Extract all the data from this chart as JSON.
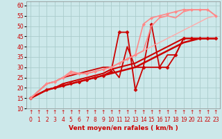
{
  "title": "",
  "xlabel": "Vent moyen/en rafales ( km/h )",
  "bg_color": "#cce8ea",
  "grid_color": "#aacccc",
  "xlim": [
    -0.5,
    23.5
  ],
  "ylim": [
    10,
    62
  ],
  "yticks": [
    10,
    15,
    20,
    25,
    30,
    35,
    40,
    45,
    50,
    55,
    60
  ],
  "ytick_labels": [
    "10",
    "15",
    "20",
    "25",
    "30",
    "35",
    "40",
    "45",
    "50",
    "55",
    "60"
  ],
  "xticks": [
    0,
    1,
    2,
    3,
    4,
    5,
    6,
    7,
    8,
    9,
    10,
    11,
    12,
    13,
    14,
    15,
    16,
    17,
    18,
    19,
    20,
    21,
    22,
    23
  ],
  "lines": [
    {
      "x": [
        0,
        2,
        3,
        4,
        5,
        6,
        7,
        8,
        9,
        10,
        11,
        12,
        13,
        14,
        15,
        16,
        17,
        18,
        19,
        20,
        21,
        22,
        23
      ],
      "y": [
        15,
        19,
        20,
        21,
        22,
        23,
        24,
        25,
        26,
        27,
        28,
        29,
        30,
        32,
        34,
        36,
        38,
        40,
        42,
        43,
        44,
        44,
        44
      ],
      "color": "#cc0000",
      "lw": 1.8,
      "marker": null,
      "ms": 0
    },
    {
      "x": [
        0,
        2,
        3,
        4,
        5,
        6,
        7,
        8,
        9,
        10,
        11,
        12,
        13,
        14,
        15,
        16,
        17,
        18,
        19,
        20,
        21,
        22,
        23
      ],
      "y": [
        15,
        19,
        20,
        22,
        23,
        24,
        25,
        26,
        27,
        29,
        30,
        31,
        32,
        34,
        36,
        38,
        40,
        42,
        44,
        44,
        44,
        44,
        44
      ],
      "color": "#cc0000",
      "lw": 1.5,
      "marker": null,
      "ms": 0
    },
    {
      "x": [
        0,
        2,
        3,
        4,
        5,
        6,
        7,
        8,
        9,
        10,
        11,
        12,
        13,
        14,
        15,
        16,
        17,
        18,
        19,
        20,
        21,
        22,
        23
      ],
      "y": [
        15,
        22,
        23,
        25,
        26,
        27,
        28,
        29,
        30,
        30,
        25,
        40,
        30,
        30,
        30,
        30,
        36,
        36,
        44,
        44,
        44,
        44,
        44
      ],
      "color": "#cc0000",
      "lw": 1.3,
      "marker": null,
      "ms": 0
    },
    {
      "x": [
        0,
        2,
        3,
        4,
        5,
        6,
        7,
        8,
        9,
        10,
        11,
        12,
        13,
        14,
        15,
        16,
        17,
        18,
        19,
        20,
        21,
        22,
        23
      ],
      "y": [
        15,
        19,
        20,
        21,
        22,
        23,
        24,
        25,
        26,
        28,
        47,
        47,
        19,
        30,
        51,
        30,
        30,
        36,
        44,
        44,
        44,
        44,
        44
      ],
      "color": "#cc0000",
      "lw": 1.3,
      "marker": "D",
      "ms": 2.5
    },
    {
      "x": [
        0,
        2,
        3,
        4,
        5,
        6,
        7,
        8,
        9,
        10,
        11,
        12,
        13,
        14,
        15,
        16,
        17,
        18,
        19,
        20,
        21,
        22,
        23
      ],
      "y": [
        15,
        22,
        23,
        25,
        27,
        27,
        27,
        28,
        29,
        30,
        32,
        34,
        36,
        38,
        40,
        42,
        44,
        46,
        48,
        50,
        52,
        54,
        55
      ],
      "color": "#ffaaaa",
      "lw": 1.0,
      "marker": null,
      "ms": 0
    },
    {
      "x": [
        0,
        2,
        3,
        4,
        5,
        6,
        7,
        8,
        9,
        10,
        11,
        12,
        13,
        14,
        15,
        16,
        17,
        18,
        19,
        20,
        21,
        22,
        23
      ],
      "y": [
        15,
        22,
        23,
        25,
        27,
        27,
        27,
        28,
        29,
        30,
        32,
        34,
        36,
        38,
        50,
        54,
        55,
        54,
        57,
        58,
        58,
        58,
        55
      ],
      "color": "#ff8888",
      "lw": 1.2,
      "marker": null,
      "ms": 0
    },
    {
      "x": [
        0,
        2,
        3,
        4,
        5,
        6,
        7,
        8,
        9,
        10,
        11,
        12,
        13,
        14,
        15,
        16,
        17,
        18,
        19,
        20,
        21,
        22,
        23
      ],
      "y": [
        15,
        22,
        23,
        25,
        28,
        27,
        27,
        28,
        29,
        30,
        32,
        34,
        36,
        51,
        54,
        55,
        56,
        57,
        58,
        58,
        58,
        58,
        55
      ],
      "color": "#ff8888",
      "lw": 1.2,
      "marker": "D",
      "ms": 2.0
    }
  ],
  "arrow_color": "#cc0000",
  "tick_color": "#cc0000",
  "xlabel_color": "#cc0000",
  "tick_fontsize": 5.5,
  "xlabel_fontsize": 6.5
}
